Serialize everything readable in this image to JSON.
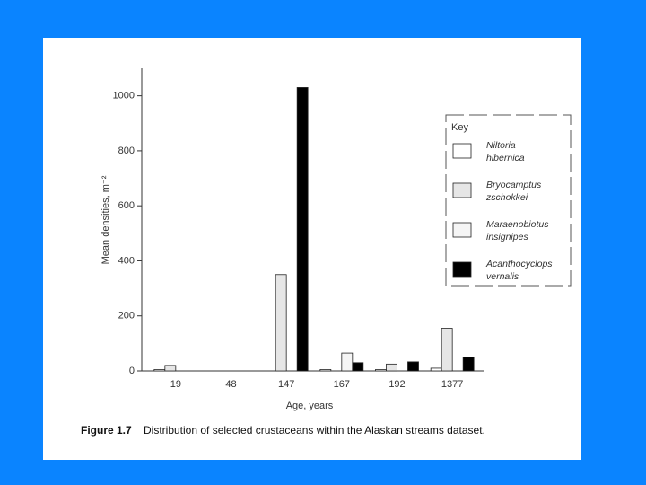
{
  "chart_data": {
    "type": "bar",
    "caption_label": "Figure 1.7",
    "caption": "Distribution of selected crustaceans within the Alaskan streams dataset.",
    "y_label": "Mean densities, m⁻²",
    "x_label": "Age, years",
    "legend_title": "Key",
    "categories": [
      "19",
      "48",
      "147",
      "167",
      "192",
      "1377"
    ],
    "series": [
      {
        "name": "Niltoria hibernica",
        "color": "#ffffff",
        "values": [
          5,
          0,
          0,
          5,
          5,
          10
        ]
      },
      {
        "name": "Bryocamptus zschokkei",
        "color": "#e6e6e6",
        "values": [
          20,
          0,
          350,
          0,
          25,
          155
        ]
      },
      {
        "name": "Maraenobiotus insignipes",
        "color": "#f5f5f5",
        "values": [
          0,
          0,
          0,
          65,
          0,
          0
        ]
      },
      {
        "name": "Acanthocyclops vernalis",
        "color": "#000000",
        "values": [
          0,
          0,
          1030,
          30,
          33,
          50
        ]
      }
    ],
    "ylim": [
      0,
      1100
    ],
    "yticks": [
      0,
      200,
      400,
      600,
      800,
      {
        "value": 1000,
        "label": "1000"
      }
    ]
  }
}
